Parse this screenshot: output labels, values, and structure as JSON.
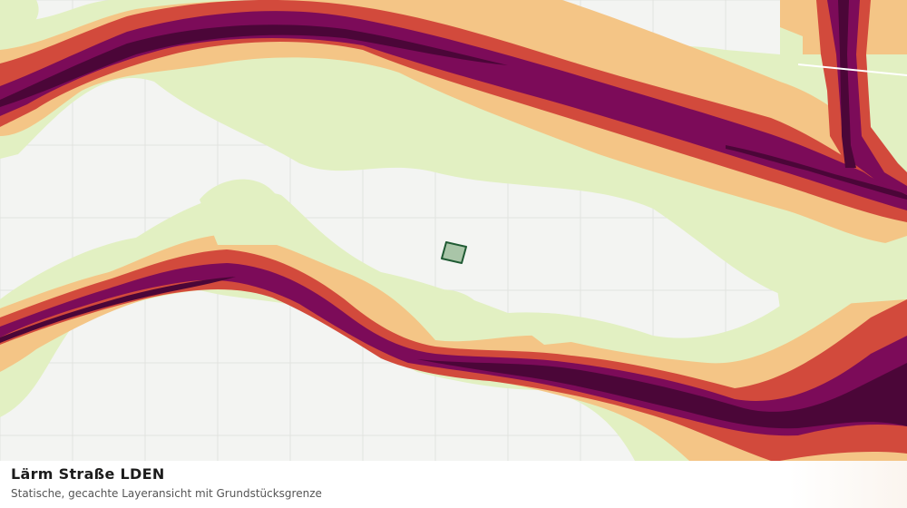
{
  "map": {
    "layer_colors": {
      "background": "#f3f4f2",
      "grid": "#e2e3e0",
      "band_1_lightgreen": "#e2f0c2",
      "band_2_orange": "#f4c586",
      "band_3_red": "#d24a3c",
      "band_4_purple": "#7c0b59",
      "band_5_darkpurple": "#4b0638",
      "parcel_fill": "#a9c5a8",
      "parcel_stroke": "#1f5a33"
    }
  },
  "caption": {
    "title": "Lärm Straße LDEN",
    "subtitle": "Statische, gecachte Layeransicht mit Grundstücksgrenze"
  }
}
